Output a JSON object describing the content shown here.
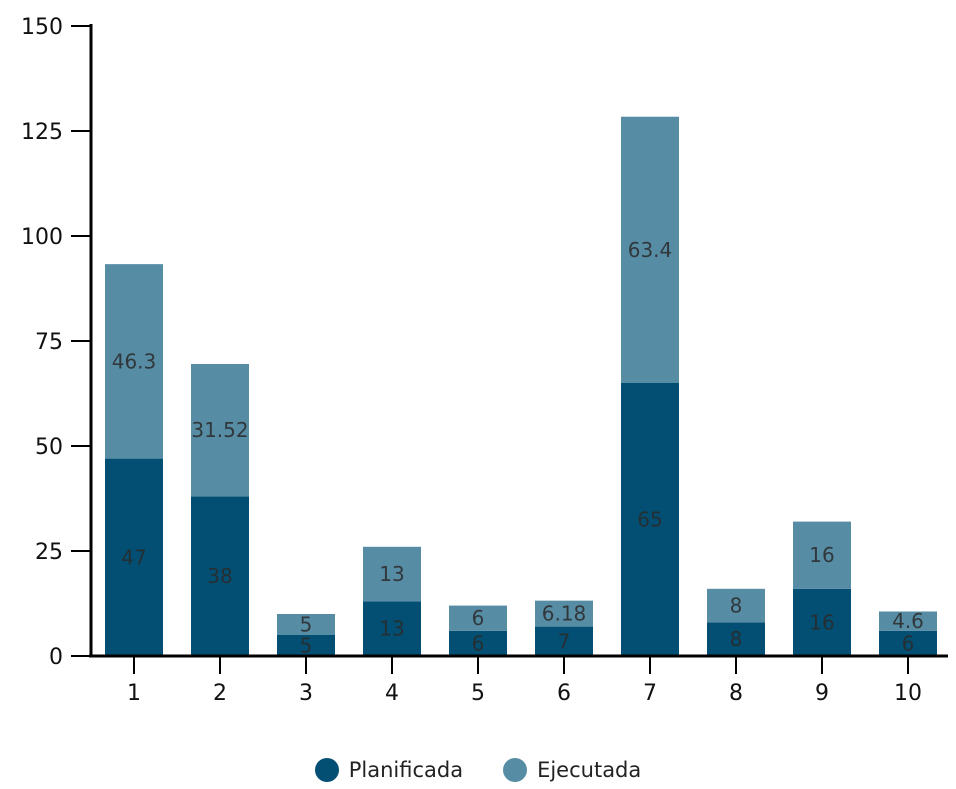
{
  "chart_data": {
    "type": "bar",
    "stacked": true,
    "categories": [
      "1",
      "2",
      "3",
      "4",
      "5",
      "6",
      "7",
      "8",
      "9",
      "10"
    ],
    "series": [
      {
        "name": "Planificada",
        "color": "#034f73",
        "values": [
          47,
          38,
          5,
          13,
          6,
          7,
          65,
          8,
          16,
          6
        ],
        "labels": [
          "47",
          "38",
          "5",
          "13",
          "6",
          "7",
          "65",
          "8",
          "16",
          "6"
        ]
      },
      {
        "name": "Ejecutada",
        "color": "#578ca5",
        "values": [
          46.3,
          31.52,
          5,
          13,
          6,
          6.18,
          63.4,
          8,
          16,
          4.6
        ],
        "labels": [
          "46.3",
          "31.52",
          "5",
          "13",
          "6",
          "6.18",
          "63.4",
          "8",
          "16",
          "4.6"
        ]
      }
    ],
    "yticks": [
      "0",
      "25",
      "50",
      "75",
      "100",
      "125",
      "150"
    ],
    "ylim": [
      0,
      150
    ],
    "grid": false,
    "legend_position": "bottom"
  }
}
